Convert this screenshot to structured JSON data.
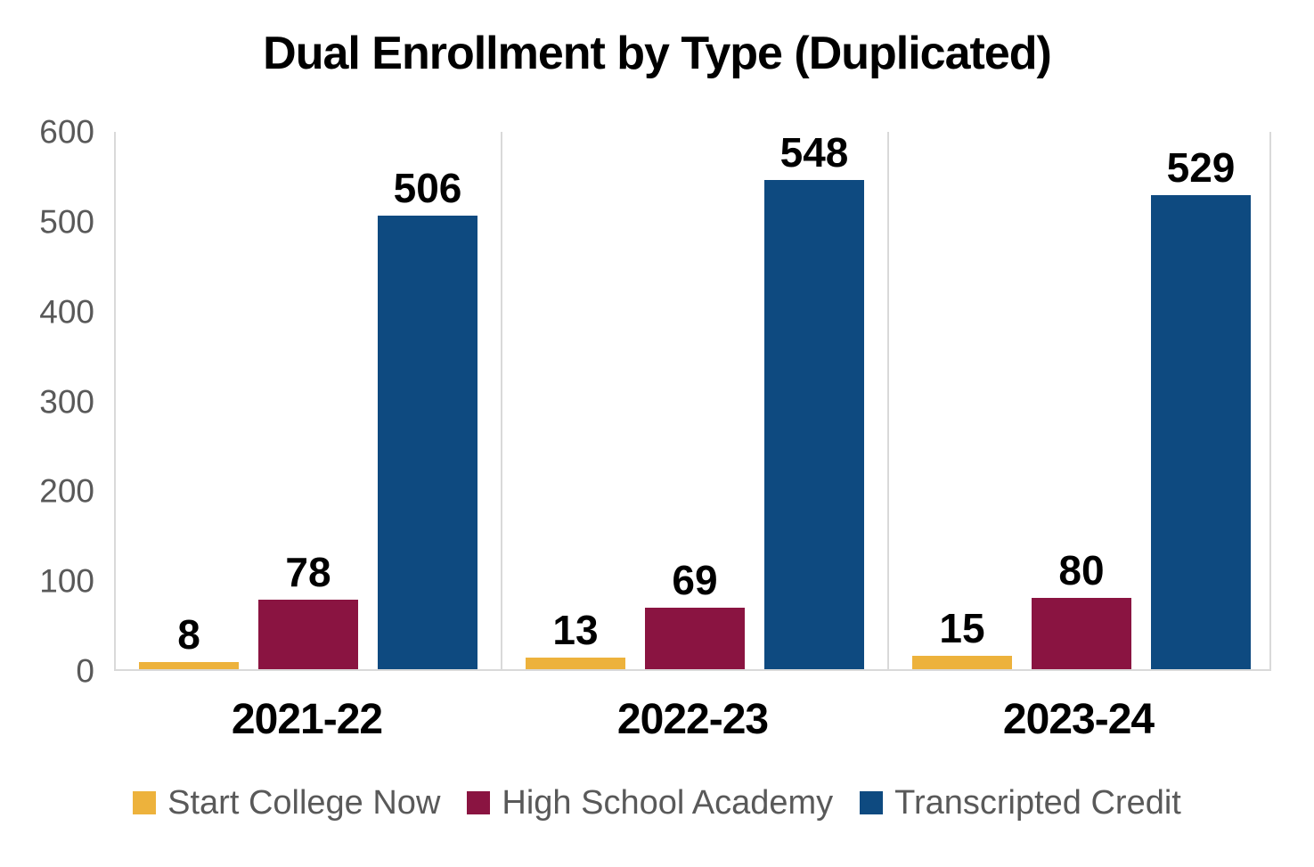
{
  "title": "Dual Enrollment by Type (Duplicated)",
  "chart_data": {
    "type": "bar",
    "title": "Dual Enrollment by Type (Duplicated)",
    "categories": [
      "2021-22",
      "2022-23",
      "2023-24"
    ],
    "series": [
      {
        "name": "Start College Now",
        "color": "#EDB23C",
        "values": [
          8,
          13,
          15
        ]
      },
      {
        "name": "High School Academy",
        "color": "#8A1441",
        "values": [
          78,
          69,
          80
        ]
      },
      {
        "name": "Transcripted Credit",
        "color": "#0E4A80",
        "values": [
          506,
          548,
          529
        ]
      }
    ],
    "xlabel": "",
    "ylabel": "",
    "ylim": [
      0,
      600
    ],
    "yticks": [
      0,
      100,
      200,
      300,
      400,
      500,
      600
    ],
    "grid": "vertical-category-separators",
    "legend_position": "bottom",
    "data_labels": true
  },
  "colors": {
    "axis_line": "#d9d9d9",
    "tick_text": "#595959",
    "legend_text": "#595959",
    "title_text": "#000000"
  }
}
